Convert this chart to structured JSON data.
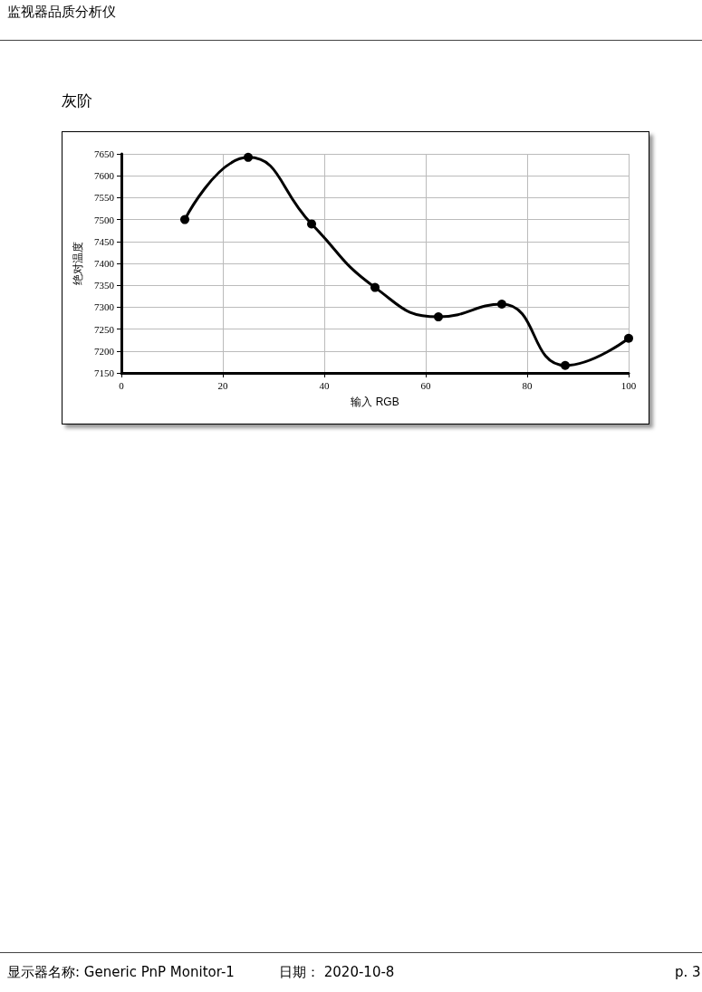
{
  "chart_data": {
    "type": "line",
    "title": "灰阶",
    "xlabel": "输入 RGB",
    "ylabel": "绝对温度",
    "annotations": [
      "监视器品质分析仪",
      "显示器名称: Generic PnP Monitor-1",
      "日期：  2020-10-8",
      "p. 3"
    ],
    "x": [
      12.5,
      25,
      37.5,
      50,
      62.5,
      75,
      87.5,
      100
    ],
    "series": [
      {
        "color": "#000000",
        "values": [
          7500,
          7642,
          7490,
          7345,
          7278,
          7307,
          7167,
          7229
        ]
      }
    ],
    "xlim": [
      0,
      100
    ],
    "xticks": [
      0,
      20,
      40,
      60,
      80,
      100
    ],
    "ylim": [
      7150,
      7650
    ],
    "yticks": [
      7150,
      7200,
      7250,
      7300,
      7350,
      7400,
      7450,
      7500,
      7550,
      7600,
      7650
    ],
    "grid": true,
    "marker": "circle",
    "line_style": "solid"
  }
}
